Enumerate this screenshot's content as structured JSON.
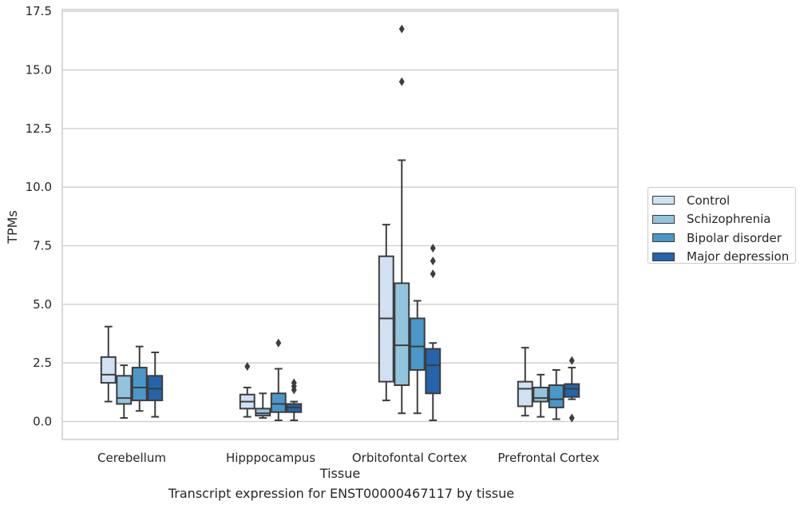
{
  "chart_data": {
    "type": "boxplot",
    "title": "Transcript expression for ENST00000467117 by tissue",
    "xlabel": "Tissue",
    "ylabel": "TPMs",
    "ylim": [
      -0.8,
      17.6
    ],
    "yticks": [
      "0.0",
      "2.5",
      "5.0",
      "7.5",
      "10.0",
      "12.5",
      "15.0",
      "17.5"
    ],
    "categories": [
      "Cerebellum",
      "Hipppocampus",
      "Orbitofontal Cortex",
      "Prefrontal Cortex"
    ],
    "grid": "horizontal",
    "legend_position": "right",
    "series": [
      {
        "name": "Control",
        "color": "#cfe1f2",
        "boxes": [
          {
            "whislo": 0.85,
            "q1": 1.65,
            "med": 2.0,
            "q3": 2.75,
            "whishi": 4.05,
            "fliers": []
          },
          {
            "whislo": 0.2,
            "q1": 0.55,
            "med": 0.85,
            "q3": 1.15,
            "whishi": 1.45,
            "fliers": [
              2.35
            ]
          },
          {
            "whislo": 0.9,
            "q1": 1.7,
            "med": 4.4,
            "q3": 7.05,
            "whishi": 8.4,
            "fliers": []
          },
          {
            "whislo": 0.25,
            "q1": 0.65,
            "med": 1.4,
            "q3": 1.7,
            "whishi": 3.15,
            "fliers": []
          }
        ]
      },
      {
        "name": "Schizophrenia",
        "color": "#93c4de",
        "boxes": [
          {
            "whislo": 0.15,
            "q1": 0.75,
            "med": 1.0,
            "q3": 1.95,
            "whishi": 2.4,
            "fliers": []
          },
          {
            "whislo": 0.15,
            "q1": 0.25,
            "med": 0.35,
            "q3": 0.55,
            "whishi": 1.2,
            "fliers": []
          },
          {
            "whislo": 0.35,
            "q1": 1.55,
            "med": 3.25,
            "q3": 5.9,
            "whishi": 11.15,
            "fliers": [
              14.5,
              16.75
            ]
          },
          {
            "whislo": 0.2,
            "q1": 0.85,
            "med": 1.0,
            "q3": 1.45,
            "whishi": 2.0,
            "fliers": []
          }
        ]
      },
      {
        "name": "Bipolar disorder",
        "color": "#4a98c9",
        "boxes": [
          {
            "whislo": 0.45,
            "q1": 0.9,
            "med": 1.45,
            "q3": 2.3,
            "whishi": 3.2,
            "fliers": []
          },
          {
            "whislo": 0.05,
            "q1": 0.4,
            "med": 0.75,
            "q3": 1.2,
            "whishi": 2.25,
            "fliers": [
              3.35
            ]
          },
          {
            "whislo": 0.35,
            "q1": 2.2,
            "med": 3.2,
            "q3": 4.4,
            "whishi": 5.15,
            "fliers": []
          },
          {
            "whislo": 0.1,
            "q1": 0.6,
            "med": 0.95,
            "q3": 1.55,
            "whishi": 2.2,
            "fliers": []
          }
        ]
      },
      {
        "name": "Major depression",
        "color": "#2464aa",
        "boxes": [
          {
            "whislo": 0.2,
            "q1": 0.9,
            "med": 1.4,
            "q3": 1.95,
            "whishi": 2.95,
            "fliers": []
          },
          {
            "whislo": 0.05,
            "q1": 0.4,
            "med": 0.6,
            "q3": 0.75,
            "whishi": 0.85,
            "fliers": [
              1.35,
              1.5,
              1.65
            ]
          },
          {
            "whislo": 0.05,
            "q1": 1.2,
            "med": 2.4,
            "q3": 3.1,
            "whishi": 3.35,
            "fliers": [
              6.3,
              6.85,
              7.4
            ]
          },
          {
            "whislo": 0.95,
            "q1": 1.05,
            "med": 1.4,
            "q3": 1.6,
            "whishi": 2.3,
            "fliers": [
              0.15,
              2.6
            ]
          }
        ]
      }
    ]
  }
}
